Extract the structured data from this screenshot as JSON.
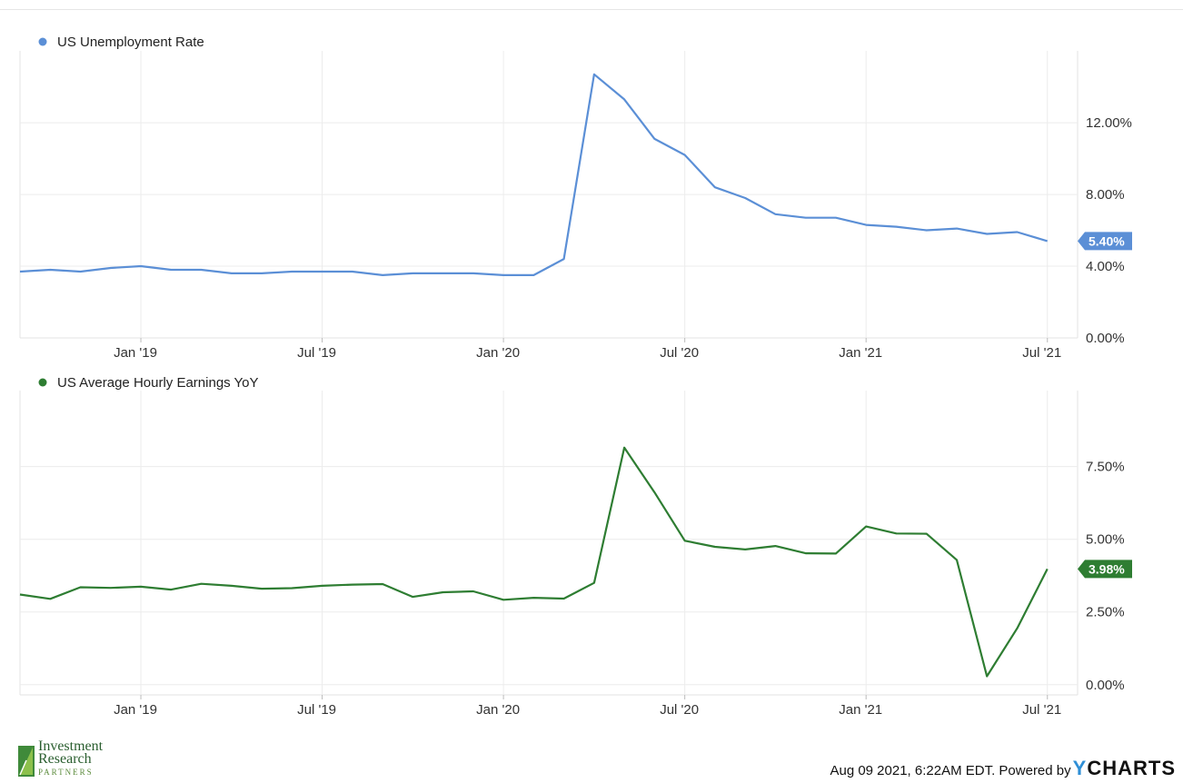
{
  "footer": {
    "timestamp_text": "Aug 09 2021, 6:22AM EDT. Powered by",
    "brand_y": "Y",
    "brand_rest": "CHARTS"
  },
  "logo": {
    "line1": "Investment",
    "line2": "Research",
    "line3": "PARTNERS"
  },
  "chart_data": [
    {
      "type": "line",
      "title": "",
      "series": [
        {
          "name": "US Unemployment Rate",
          "color": "#5b8fd6",
          "last_value_label": "5.40%",
          "x": [
            "2018-09",
            "2018-10",
            "2018-11",
            "2018-12",
            "2019-01",
            "2019-02",
            "2019-03",
            "2019-04",
            "2019-05",
            "2019-06",
            "2019-07",
            "2019-08",
            "2019-09",
            "2019-10",
            "2019-11",
            "2019-12",
            "2020-01",
            "2020-02",
            "2020-03",
            "2020-04",
            "2020-05",
            "2020-06",
            "2020-07",
            "2020-08",
            "2020-09",
            "2020-10",
            "2020-11",
            "2020-12",
            "2021-01",
            "2021-02",
            "2021-03",
            "2021-04",
            "2021-05",
            "2021-06",
            "2021-07"
          ],
          "values": [
            3.7,
            3.8,
            3.7,
            3.9,
            4.0,
            3.8,
            3.8,
            3.6,
            3.6,
            3.7,
            3.7,
            3.7,
            3.5,
            3.6,
            3.6,
            3.6,
            3.5,
            3.5,
            4.4,
            14.7,
            13.3,
            11.1,
            10.2,
            8.4,
            7.8,
            6.9,
            6.7,
            6.7,
            6.3,
            6.2,
            6.0,
            6.1,
            5.8,
            5.9,
            5.4
          ]
        }
      ],
      "x_ticks": [
        "Jan '19",
        "Jul '19",
        "Jan '20",
        "Jul '20",
        "Jan '21",
        "Jul '21"
      ],
      "y_ticks": [
        "0.00%",
        "4.00%",
        "8.00%",
        "12.00%"
      ],
      "ylim": [
        0,
        15.5
      ],
      "grid": true,
      "legend": "top-left"
    },
    {
      "type": "line",
      "title": "",
      "series": [
        {
          "name": "US Average Hourly Earnings YoY",
          "color": "#2e7d32",
          "last_value_label": "3.98%",
          "x": [
            "2018-09",
            "2018-10",
            "2018-11",
            "2018-12",
            "2019-01",
            "2019-02",
            "2019-03",
            "2019-04",
            "2019-05",
            "2019-06",
            "2019-07",
            "2019-08",
            "2019-09",
            "2019-10",
            "2019-11",
            "2019-12",
            "2020-01",
            "2020-02",
            "2020-03",
            "2020-04",
            "2020-05",
            "2020-06",
            "2020-07",
            "2020-08",
            "2020-09",
            "2020-10",
            "2020-11",
            "2020-12",
            "2021-01",
            "2021-02",
            "2021-03",
            "2021-04",
            "2021-05",
            "2021-06",
            "2021-07"
          ],
          "values": [
            3.1,
            2.95,
            3.35,
            3.33,
            3.37,
            3.27,
            3.47,
            3.4,
            3.3,
            3.32,
            3.4,
            3.44,
            3.46,
            3.02,
            3.18,
            3.21,
            2.92,
            2.99,
            2.96,
            3.5,
            8.15,
            6.61,
            4.95,
            4.74,
            4.65,
            4.77,
            4.52,
            4.51,
            5.44,
            5.2,
            5.19,
            4.29,
            0.29,
            1.94,
            3.98
          ]
        }
      ],
      "x_ticks": [
        "Jan '19",
        "Jul '19",
        "Jan '20",
        "Jul '20",
        "Jan '21",
        "Jul '21"
      ],
      "y_ticks": [
        "0.00%",
        "2.50%",
        "5.00%",
        "7.50%"
      ],
      "ylim": [
        -0.35,
        9.8
      ],
      "grid": true,
      "legend": "top-left"
    }
  ]
}
